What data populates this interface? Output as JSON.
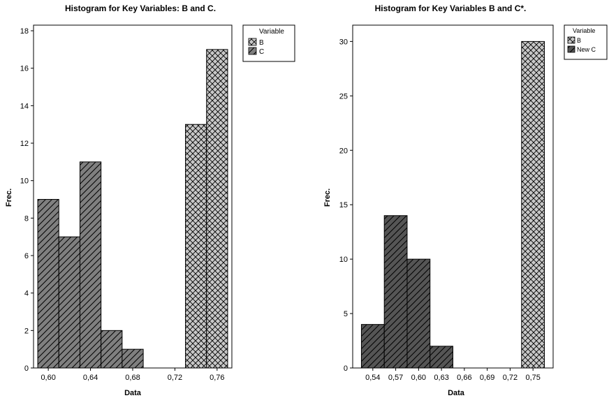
{
  "chart_data": [
    {
      "type": "bar",
      "title": "Histogram for Key Variables: B and C.",
      "xlabel": "Data",
      "ylabel": "Frec.",
      "xlim": [
        0.586,
        0.774
      ],
      "ylim": [
        0,
        18.3
      ],
      "xticks": [
        0.6,
        0.64,
        0.68,
        0.72,
        0.76
      ],
      "xtick_labels": [
        "0,60",
        "0,64",
        "0,68",
        "0,72",
        "0,76"
      ],
      "yticks": [
        0,
        2,
        4,
        6,
        8,
        10,
        12,
        14,
        16,
        18
      ],
      "legend": {
        "title": "Variable",
        "position": "right",
        "entries": [
          "B",
          "C"
        ]
      },
      "series": [
        {
          "name": "B",
          "pattern": "crosshatch",
          "color": "#c8c8c8",
          "bins": [
            {
              "x0": 0.73,
              "x1": 0.75,
              "value": 13
            },
            {
              "x0": 0.75,
              "x1": 0.77,
              "value": 17
            }
          ]
        },
        {
          "name": "C",
          "pattern": "diagonal",
          "color": "#7f7f7f",
          "bins": [
            {
              "x0": 0.59,
              "x1": 0.61,
              "value": 9
            },
            {
              "x0": 0.61,
              "x1": 0.63,
              "value": 7
            },
            {
              "x0": 0.63,
              "x1": 0.65,
              "value": 11
            },
            {
              "x0": 0.65,
              "x1": 0.67,
              "value": 2
            },
            {
              "x0": 0.67,
              "x1": 0.69,
              "value": 1
            }
          ]
        }
      ]
    },
    {
      "type": "bar",
      "title": "Histogram for Key Variables B and C*.",
      "xlabel": "Data",
      "ylabel": "Frec.",
      "xlim": [
        0.5136,
        0.7764
      ],
      "ylim": [
        0,
        31.5
      ],
      "xticks": [
        0.54,
        0.57,
        0.6,
        0.63,
        0.66,
        0.69,
        0.72,
        0.75
      ],
      "xtick_labels": [
        "0,54",
        "0,57",
        "0,60",
        "0,63",
        "0,66",
        "0,69",
        "0,72",
        "0,75"
      ],
      "yticks": [
        0,
        5,
        10,
        15,
        20,
        25,
        30
      ],
      "legend": {
        "title": "Variable",
        "position": "right",
        "entries": [
          "B",
          "New C"
        ]
      },
      "series": [
        {
          "name": "B",
          "pattern": "crosshatch",
          "color": "#c8c8c8",
          "bins": [
            {
              "x0": 0.735,
              "x1": 0.765,
              "value": 30
            }
          ]
        },
        {
          "name": "New C",
          "pattern": "diagonal",
          "color": "#555555",
          "bins": [
            {
              "x0": 0.525,
              "x1": 0.555,
              "value": 4
            },
            {
              "x0": 0.555,
              "x1": 0.585,
              "value": 14
            },
            {
              "x0": 0.585,
              "x1": 0.615,
              "value": 10
            },
            {
              "x0": 0.615,
              "x1": 0.645,
              "value": 2
            }
          ]
        }
      ]
    }
  ]
}
